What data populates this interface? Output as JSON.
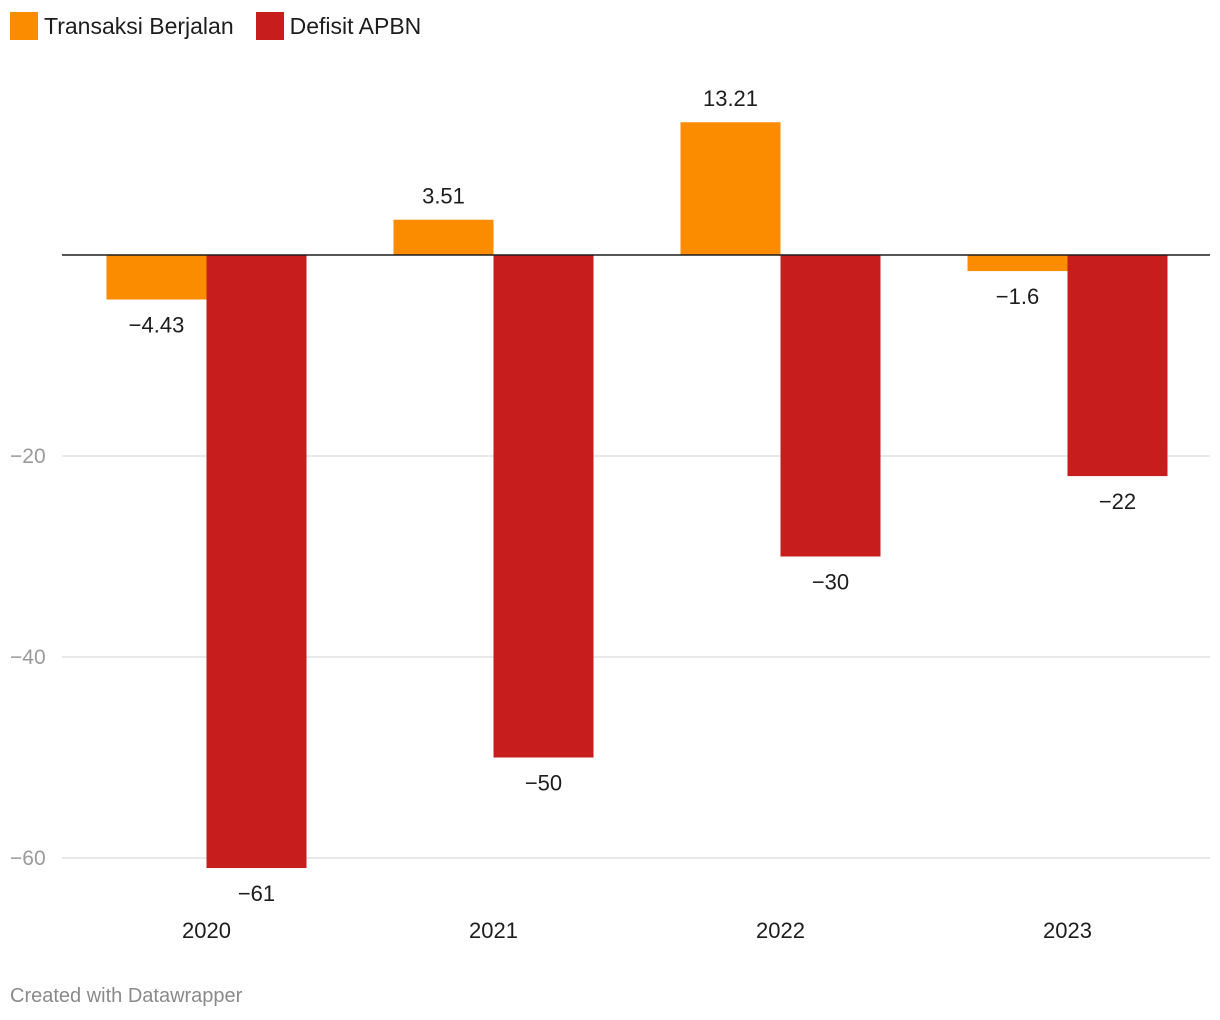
{
  "chart_data": {
    "type": "bar",
    "categories": [
      "2020",
      "2021",
      "2022",
      "2023"
    ],
    "series": [
      {
        "name": "Transaksi Berjalan",
        "color": "#fb8c00",
        "values": [
          -4.43,
          3.51,
          13.21,
          -1.6
        ],
        "labels": [
          "−4.43",
          "3.51",
          "13.21",
          "−1.6"
        ]
      },
      {
        "name": "Defisit APBN",
        "color": "#c71e1d",
        "values": [
          -61,
          -50,
          -30,
          -22
        ],
        "labels": [
          "−61",
          "−50",
          "−30",
          "−22"
        ]
      }
    ],
    "yticks": [
      -20,
      -40,
      -60
    ],
    "ytick_labels": [
      "−20",
      "−40",
      "−60"
    ],
    "ylim": [
      -61,
      13.21
    ],
    "title": "",
    "xlabel": "",
    "ylabel": ""
  },
  "legend": {
    "item1": "Transaksi Berjalan",
    "item2": "Defisit APBN"
  },
  "footer": {
    "credit": "Created with Datawrapper"
  }
}
